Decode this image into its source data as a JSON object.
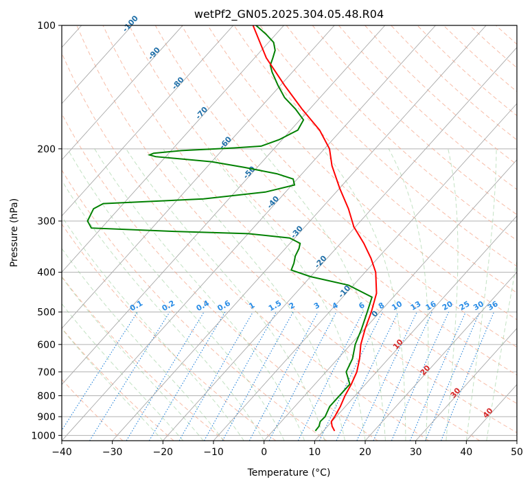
{
  "chart_data": {
    "type": "line",
    "subtype": "skew-t log-p diagram",
    "title": "wetPf2_GN05.2025.304.05.48.R04",
    "xlabel": "Temperature (°C)",
    "ylabel": "Pressure (hPa)",
    "xlim": [
      -40,
      50
    ],
    "ylim": [
      1030,
      100
    ],
    "x_ticks": [
      "-40",
      "-30",
      "-20",
      "-10",
      "0",
      "10",
      "20",
      "30",
      "40",
      "50"
    ],
    "y_ticks": [
      "100",
      "200",
      "300",
      "400",
      "500",
      "600",
      "700",
      "800",
      "900",
      "1000"
    ],
    "isotherm_labels": [
      "-100",
      "-90",
      "-80",
      "-70",
      "-60",
      "-50",
      "-40",
      "-30",
      "-20",
      "-10",
      "0",
      "10",
      "20",
      "30",
      "40"
    ],
    "mixing_ratio_labels": [
      "0.1",
      "0.2",
      "0.4",
      "0.6",
      "1",
      "1.5",
      "2",
      "3",
      "4",
      "6",
      "8",
      "10",
      "13",
      "16",
      "20",
      "25",
      "30",
      "36"
    ],
    "colors": {
      "temperature": "#ff0000",
      "dewpoint": "#008000"
    },
    "series": [
      {
        "name": "Temperature",
        "points": [
          [
            975,
            12.2
          ],
          [
            950,
            10.9
          ],
          [
            925,
            9.9
          ],
          [
            900,
            9.7
          ],
          [
            850,
            9.0
          ],
          [
            800,
            8.0
          ],
          [
            750,
            7.2
          ],
          [
            700,
            6.1
          ],
          [
            650,
            4.3
          ],
          [
            600,
            2.0
          ],
          [
            550,
            0.1
          ],
          [
            500,
            -1.7
          ],
          [
            450,
            -4.0
          ],
          [
            400,
            -7.9
          ],
          [
            370,
            -11.3
          ],
          [
            340,
            -15.4
          ],
          [
            310,
            -20.3
          ],
          [
            280,
            -24.6
          ],
          [
            250,
            -29.9
          ],
          [
            220,
            -35.5
          ],
          [
            200,
            -39.0
          ],
          [
            180,
            -44.3
          ],
          [
            160,
            -51.5
          ],
          [
            140,
            -59.2
          ],
          [
            120,
            -67.7
          ],
          [
            100,
            -76.1
          ]
        ]
      },
      {
        "name": "Dewpoint",
        "points": [
          [
            975,
            8.4
          ],
          [
            950,
            8.3
          ],
          [
            925,
            7.7
          ],
          [
            900,
            7.8
          ],
          [
            850,
            6.9
          ],
          [
            800,
            6.9
          ],
          [
            750,
            6.9
          ],
          [
            700,
            4.0
          ],
          [
            650,
            2.9
          ],
          [
            600,
            0.9
          ],
          [
            550,
            -0.6
          ],
          [
            500,
            -2.5
          ],
          [
            460,
            -4.2
          ],
          [
            430,
            -11.0
          ],
          [
            410,
            -20.0
          ],
          [
            395,
            -25.0
          ],
          [
            380,
            -25.7
          ],
          [
            365,
            -26.7
          ],
          [
            350,
            -27.3
          ],
          [
            340,
            -28.0
          ],
          [
            330,
            -31.0
          ],
          [
            322,
            -40.0
          ],
          [
            318,
            -55.0
          ],
          [
            312,
            -72.0
          ],
          [
            300,
            -74.0
          ],
          [
            280,
            -75.0
          ],
          [
            272,
            -74.0
          ],
          [
            265,
            -55.0
          ],
          [
            255,
            -44.0
          ],
          [
            245,
            -39.5
          ],
          [
            237,
            -40.8
          ],
          [
            230,
            -45.0
          ],
          [
            222,
            -52.5
          ],
          [
            215,
            -60.0
          ],
          [
            209,
            -72.0
          ],
          [
            207,
            -73.5
          ],
          [
            205,
            -73.0
          ],
          [
            202,
            -68.0
          ],
          [
            199,
            -58.0
          ],
          [
            197,
            -53.0
          ],
          [
            190,
            -50.6
          ],
          [
            180,
            -48.6
          ],
          [
            170,
            -49.3
          ],
          [
            160,
            -52.8
          ],
          [
            150,
            -57.0
          ],
          [
            140,
            -60.5
          ],
          [
            130,
            -64.0
          ],
          [
            125,
            -65.6
          ],
          [
            120,
            -66.4
          ],
          [
            115,
            -67.3
          ],
          [
            110,
            -69.0
          ],
          [
            105,
            -72.0
          ],
          [
            100,
            -75.5
          ]
        ]
      }
    ]
  }
}
